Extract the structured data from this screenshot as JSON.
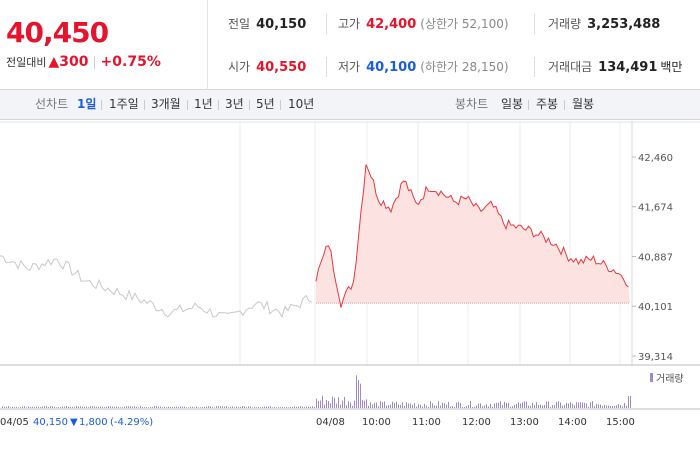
{
  "quote": {
    "price": "40,450",
    "change_label": "전일대비",
    "change_arrow": "▲",
    "change_value": "300",
    "change_pct": "+0.75%",
    "up_color": "#e5132b",
    "down_color": "#1a5dd6"
  },
  "stats": {
    "prev_close": {
      "label": "전일",
      "value": "40,150"
    },
    "open": {
      "label": "시가",
      "value": "40,550"
    },
    "high": {
      "label": "고가",
      "value": "42,400",
      "sub": "(상한가 52,100)"
    },
    "low": {
      "label": "저가",
      "value": "40,100",
      "sub": "(하한가 28,150)"
    },
    "volume": {
      "label": "거래량",
      "value": "3,253,488"
    },
    "amount": {
      "label": "거래대금",
      "value": "134,491",
      "unit": "백만"
    }
  },
  "tabs": {
    "line_label": "선차트",
    "periods": [
      "1일",
      "1주일",
      "3개월",
      "1년",
      "3년",
      "5년",
      "10년"
    ],
    "active_period": "1일",
    "candle_label": "봉차트",
    "candles": [
      "일봉",
      "주봉",
      "월봉"
    ]
  },
  "chart": {
    "y_ticks": [
      "42,460",
      "41,674",
      "40,887",
      "40,101",
      "39,314"
    ],
    "volume_legend": "거래량",
    "x_labels": [
      "04/05",
      "04/08",
      "10:00",
      "11:00",
      "12:00",
      "13:00",
      "14:00",
      "15:00"
    ],
    "prev_info": {
      "close": "40,150",
      "arrow": "▼",
      "change": "1,800",
      "pct": "(-4.29%)"
    },
    "line_color_today": "#e8383d",
    "fill_color_today": "#fde2e2",
    "line_color_prev": "#c8c8c8",
    "volume_color": "#9b8cc6"
  },
  "chart_data": {
    "type": "area",
    "title": "",
    "ylim": [
      39314,
      42460
    ],
    "y_ticks": [
      42460,
      41674,
      40887,
      40101,
      39314
    ],
    "baseline": 40150,
    "series": [
      {
        "name": "04/05",
        "x": [
          0,
          10,
          20,
          30,
          40,
          50,
          60,
          70,
          80,
          90,
          100,
          110
        ],
        "values": [
          40900,
          40700,
          40850,
          40500,
          40350,
          40200,
          40000,
          40100,
          39900,
          40150,
          40000,
          40250
        ]
      },
      {
        "name": "04/08",
        "x": [
          "09:00",
          "09:15",
          "09:30",
          "09:45",
          "10:00",
          "10:15",
          "10:30",
          "10:45",
          "11:00",
          "11:15",
          "11:30",
          "11:45",
          "12:00",
          "12:15",
          "12:30",
          "12:45",
          "13:00",
          "13:15",
          "13:30",
          "13:45",
          "14:00",
          "14:15",
          "14:30",
          "14:45",
          "15:00",
          "15:20"
        ],
        "values": [
          40550,
          41100,
          40150,
          40500,
          42400,
          41800,
          41650,
          42100,
          41700,
          42000,
          41900,
          41750,
          41800,
          41600,
          41700,
          41400,
          41350,
          41300,
          41200,
          41100,
          40900,
          40800,
          40850,
          40750,
          40650,
          40450
        ]
      }
    ]
  }
}
